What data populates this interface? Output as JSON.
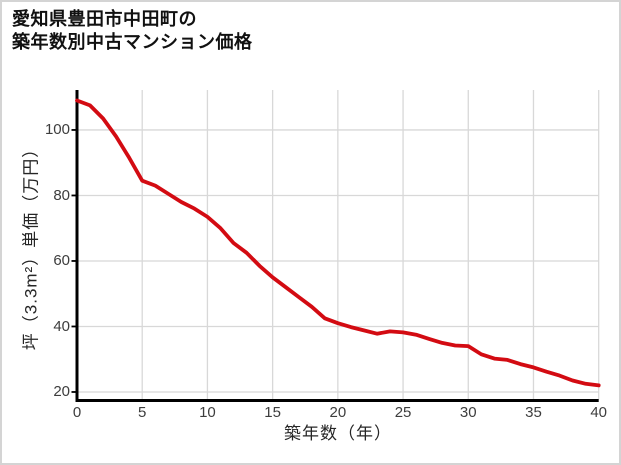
{
  "page": {
    "background": "#ffffff",
    "border_color": "#d4d4d4"
  },
  "header": {
    "title_line1": "愛知県豊田市中田町の",
    "title_line2": "築年数別中古マンション価格"
  },
  "chart_data": {
    "type": "line",
    "title": "愛知県豊田市中田町の築年数別中古マンション価格",
    "xlabel": "築年数（年）",
    "ylabel": "坪（3.3m²）単価（万円）",
    "x": [
      0,
      1,
      2,
      3,
      4,
      5,
      6,
      7,
      8,
      9,
      10,
      11,
      12,
      13,
      14,
      15,
      16,
      17,
      18,
      19,
      20,
      21,
      22,
      23,
      24,
      25,
      26,
      27,
      28,
      29,
      30,
      31,
      32,
      33,
      34,
      35,
      36,
      37,
      38,
      39,
      40
    ],
    "values": [
      109,
      107.5,
      103.5,
      98,
      91.5,
      84.5,
      83,
      80.5,
      78,
      76,
      73.5,
      70,
      65.5,
      62.5,
      58.5,
      55,
      52,
      49,
      46,
      42.5,
      41,
      39.8,
      38.8,
      37.8,
      38.5,
      38.2,
      37.5,
      36.2,
      35,
      34.2,
      34,
      31.5,
      30.2,
      29.8,
      28.5,
      27.5,
      26.2,
      25,
      23.5,
      22.5,
      22
    ],
    "xticks": [
      0,
      5,
      10,
      15,
      20,
      25,
      30,
      35,
      40
    ],
    "yticks": [
      20,
      40,
      60,
      80,
      100
    ],
    "xlim": [
      0,
      40
    ],
    "ylim": [
      17.4,
      112.2
    ],
    "grid": true,
    "legend": "none",
    "line_color": "#d30b12",
    "axis_color": "#000000",
    "grid_color": "#d8d8d8",
    "tick_label_color": "#3d3d3d"
  }
}
